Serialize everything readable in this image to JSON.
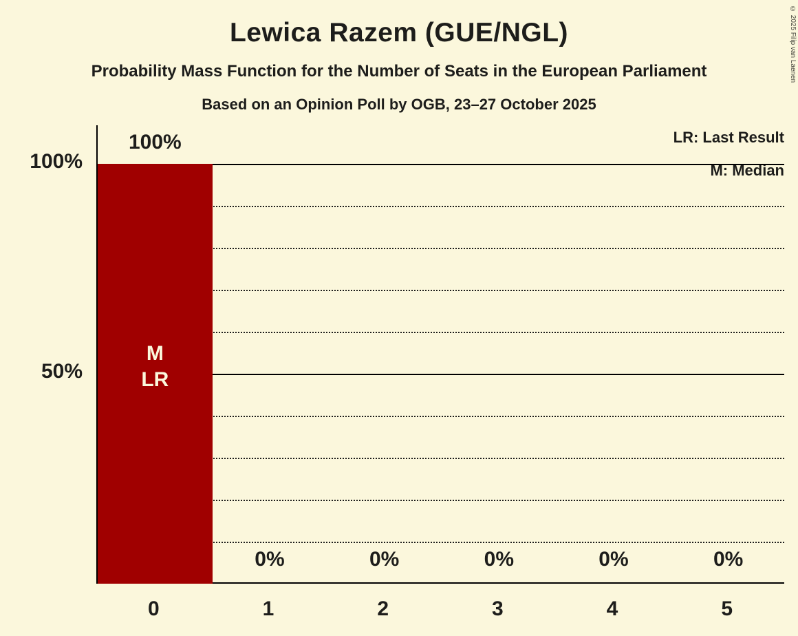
{
  "header": {
    "title": "Lewica Razem (GUE/NGL)",
    "subtitle": "Probability Mass Function for the Number of Seats in the European Parliament",
    "poll_info": "Based on an Opinion Poll by OGB, 23–27 October 2025"
  },
  "legend": {
    "lr": "LR: Last Result",
    "m": "M: Median"
  },
  "copyright": "© 2025 Filip van Laenen",
  "chart_data": {
    "type": "bar",
    "title": "Lewica Razem (GUE/NGL)",
    "xlabel": "Number of Seats",
    "ylabel": "Probability",
    "categories": [
      "0",
      "1",
      "2",
      "3",
      "4",
      "5"
    ],
    "values": [
      100,
      0,
      0,
      0,
      0,
      0
    ],
    "bar_labels": [
      "100%",
      "0%",
      "0%",
      "0%",
      "0%",
      "0%"
    ],
    "ylim": [
      0,
      100
    ],
    "y_ticks": [
      {
        "value": 100,
        "label": "100%"
      },
      {
        "value": 50,
        "label": "50%"
      }
    ],
    "gridlines": {
      "solid": [
        100,
        50
      ],
      "dotted": [
        90,
        80,
        70,
        60,
        40,
        30,
        20,
        10
      ]
    },
    "annotations": [
      {
        "bar_index": 0,
        "lines": [
          "M",
          "LR"
        ]
      }
    ],
    "bar_color": "#a00000",
    "background_color": "#fbf7dc",
    "legend_position": "top-right",
    "grid": true
  }
}
